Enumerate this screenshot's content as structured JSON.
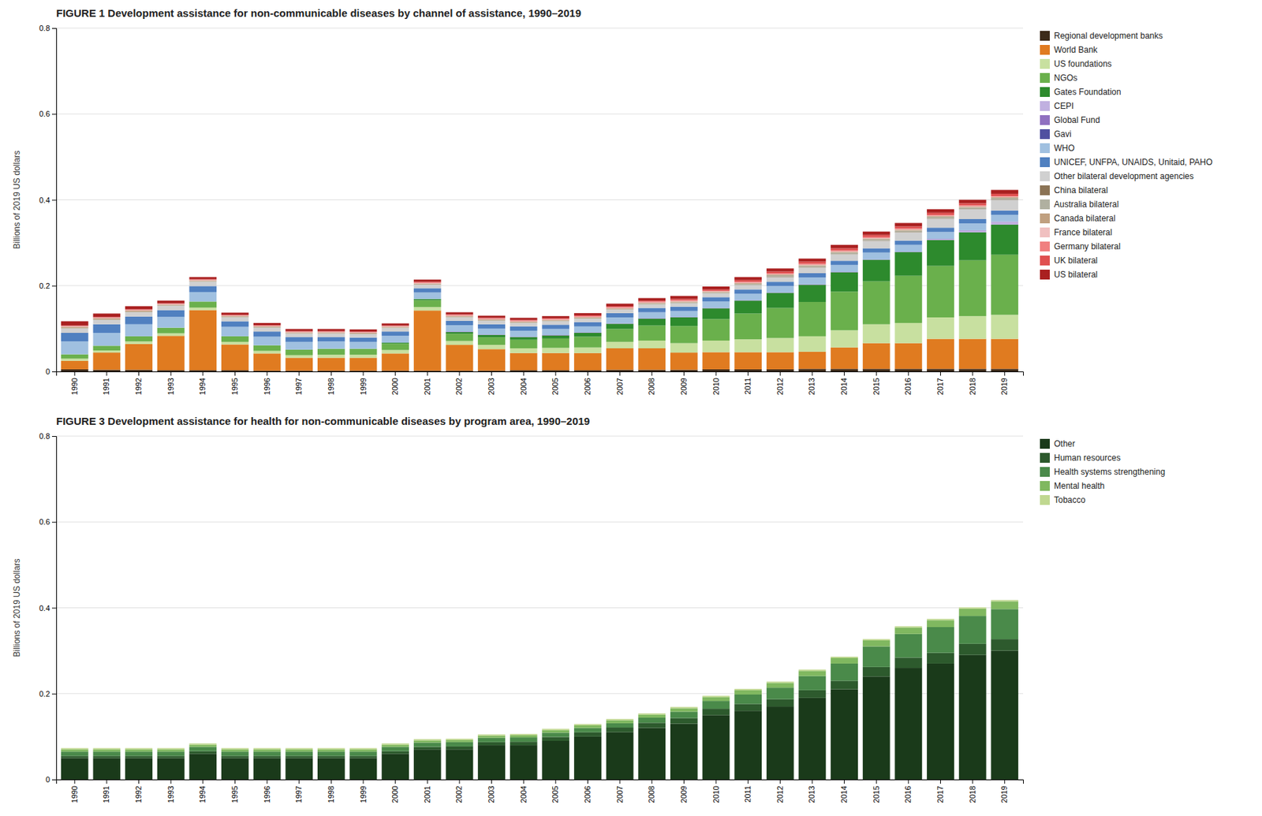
{
  "chart_data": [
    {
      "type": "bar",
      "stacked": true,
      "grid": true,
      "legend": "right",
      "title": "FIGURE 1   Development assistance for non-communicable diseases by channel of assistance, 1990–2019",
      "ylabel": "Billions of 2019 US dollars",
      "categories": [
        1990,
        1991,
        1992,
        1993,
        1994,
        1995,
        1996,
        1997,
        1998,
        1999,
        2000,
        2001,
        2002,
        2003,
        2004,
        2005,
        2006,
        2007,
        2008,
        2009,
        2010,
        2011,
        2012,
        2013,
        2014,
        2015,
        2016,
        2017,
        2018,
        2019
      ],
      "ylim": [
        0,
        0.8
      ],
      "yticks": [
        0,
        0.2,
        0.4,
        0.6,
        0.8
      ],
      "series": [
        {
          "name": "Regional development banks",
          "color": "#3d2b1a",
          "values": [
            0.005,
            0.004,
            0.004,
            0.003,
            0.003,
            0.003,
            0.002,
            0.002,
            0.002,
            0.002,
            0.002,
            0.002,
            0.002,
            0.002,
            0.003,
            0.003,
            0.003,
            0.004,
            0.004,
            0.004,
            0.005,
            0.005,
            0.005,
            0.006,
            0.006,
            0.006,
            0.006,
            0.006,
            0.006,
            0.006
          ]
        },
        {
          "name": "World Bank",
          "color": "#e07b20",
          "values": [
            0.02,
            0.04,
            0.06,
            0.08,
            0.14,
            0.06,
            0.04,
            0.03,
            0.03,
            0.03,
            0.04,
            0.14,
            0.06,
            0.05,
            0.04,
            0.04,
            0.04,
            0.05,
            0.05,
            0.04,
            0.04,
            0.04,
            0.04,
            0.04,
            0.05,
            0.06,
            0.06,
            0.07,
            0.07,
            0.07
          ]
        },
        {
          "name": "US foundations",
          "color": "#c8e0a0",
          "values": [
            0.005,
            0.005,
            0.006,
            0.006,
            0.006,
            0.006,
            0.006,
            0.006,
            0.007,
            0.007,
            0.008,
            0.008,
            0.009,
            0.01,
            0.011,
            0.012,
            0.013,
            0.015,
            0.018,
            0.022,
            0.027,
            0.03,
            0.033,
            0.036,
            0.04,
            0.044,
            0.047,
            0.05,
            0.053,
            0.056
          ]
        },
        {
          "name": "NGOs",
          "color": "#6ab04c",
          "values": [
            0.01,
            0.011,
            0.012,
            0.013,
            0.014,
            0.013,
            0.013,
            0.013,
            0.014,
            0.014,
            0.015,
            0.016,
            0.017,
            0.018,
            0.02,
            0.022,
            0.025,
            0.03,
            0.035,
            0.04,
            0.05,
            0.06,
            0.07,
            0.08,
            0.09,
            0.1,
            0.11,
            0.12,
            0.13,
            0.14
          ]
        },
        {
          "name": "Gates Foundation",
          "color": "#2d8a2d",
          "values": [
            0,
            0,
            0,
            0,
            0,
            0,
            0,
            0,
            0,
            0,
            0.002,
            0.003,
            0.004,
            0.005,
            0.006,
            0.007,
            0.009,
            0.012,
            0.016,
            0.02,
            0.025,
            0.03,
            0.035,
            0.04,
            0.045,
            0.05,
            0.055,
            0.06,
            0.065,
            0.07
          ]
        },
        {
          "name": "CEPI",
          "color": "#c0b0e0",
          "values": [
            0,
            0,
            0,
            0,
            0,
            0,
            0,
            0,
            0,
            0,
            0,
            0,
            0,
            0,
            0,
            0,
            0,
            0,
            0,
            0,
            0,
            0,
            0,
            0,
            0,
            0,
            0,
            0.002,
            0.004,
            0.006
          ]
        },
        {
          "name": "Global Fund",
          "color": "#9070c0",
          "values": [
            0,
            0,
            0,
            0,
            0,
            0,
            0,
            0,
            0,
            0,
            0,
            0,
            0.001,
            0.001,
            0.001,
            0.001,
            0.001,
            0.001,
            0.001,
            0.001,
            0.001,
            0.001,
            0.001,
            0.001,
            0.001,
            0.001,
            0.001,
            0.001,
            0.001,
            0.001
          ]
        },
        {
          "name": "Gavi",
          "color": "#5050a0",
          "values": [
            0,
            0,
            0,
            0,
            0,
            0,
            0,
            0,
            0,
            0,
            0,
            0,
            0,
            0,
            0,
            0,
            0,
            0,
            0,
            0,
            0,
            0,
            0,
            0,
            0,
            0,
            0,
            0,
            0,
            0
          ]
        },
        {
          "name": "WHO",
          "color": "#a0c0e0",
          "values": [
            0.03,
            0.03,
            0.028,
            0.025,
            0.022,
            0.022,
            0.02,
            0.018,
            0.017,
            0.016,
            0.016,
            0.015,
            0.015,
            0.014,
            0.014,
            0.014,
            0.014,
            0.014,
            0.014,
            0.014,
            0.015,
            0.015,
            0.015,
            0.016,
            0.016,
            0.016,
            0.016,
            0.016,
            0.016,
            0.016
          ]
        },
        {
          "name": "UNICEF, UNFPA, UNAIDS, Unitaid, PAHO",
          "color": "#5080c0",
          "values": [
            0.02,
            0.02,
            0.018,
            0.016,
            0.014,
            0.013,
            0.012,
            0.011,
            0.01,
            0.01,
            0.01,
            0.01,
            0.01,
            0.01,
            0.01,
            0.01,
            0.01,
            0.01,
            0.01,
            0.01,
            0.01,
            0.01,
            0.01,
            0.01,
            0.01,
            0.01,
            0.01,
            0.01,
            0.01,
            0.01
          ]
        },
        {
          "name": "Other bilateral development agencies",
          "color": "#d0d0d0",
          "values": [
            0.01,
            0.01,
            0.01,
            0.01,
            0.01,
            0.009,
            0.009,
            0.008,
            0.008,
            0.008,
            0.008,
            0.008,
            0.008,
            0.008,
            0.008,
            0.008,
            0.008,
            0.008,
            0.008,
            0.008,
            0.009,
            0.01,
            0.011,
            0.013,
            0.015,
            0.017,
            0.019,
            0.021,
            0.023,
            0.025
          ]
        },
        {
          "name": "China bilateral",
          "color": "#8b7355",
          "values": [
            0,
            0,
            0,
            0,
            0,
            0,
            0,
            0,
            0,
            0,
            0,
            0,
            0,
            0,
            0,
            0,
            0,
            0,
            0,
            0,
            0,
            0,
            0.001,
            0.001,
            0.001,
            0.001,
            0.001,
            0.001,
            0.001,
            0.001
          ]
        },
        {
          "name": "Australia bilateral",
          "color": "#b0b0a0",
          "values": [
            0.001,
            0.001,
            0.001,
            0.001,
            0.001,
            0.001,
            0.001,
            0.001,
            0.001,
            0.001,
            0.001,
            0.001,
            0.001,
            0.001,
            0.001,
            0.001,
            0.001,
            0.001,
            0.002,
            0.002,
            0.002,
            0.003,
            0.003,
            0.003,
            0.003,
            0.003,
            0.003,
            0.003,
            0.003,
            0.003
          ]
        },
        {
          "name": "Canada bilateral",
          "color": "#c0a080",
          "values": [
            0.003,
            0.003,
            0.003,
            0.002,
            0.002,
            0.002,
            0.002,
            0.002,
            0.002,
            0.002,
            0.002,
            0.002,
            0.002,
            0.002,
            0.002,
            0.002,
            0.002,
            0.002,
            0.002,
            0.002,
            0.002,
            0.002,
            0.002,
            0.002,
            0.002,
            0.002,
            0.002,
            0.002,
            0.002,
            0.002
          ]
        },
        {
          "name": "France bilateral",
          "color": "#f0c0c0",
          "values": [
            0.001,
            0.001,
            0.001,
            0.001,
            0.001,
            0.001,
            0.001,
            0.001,
            0.001,
            0.001,
            0.001,
            0.001,
            0.001,
            0.001,
            0.001,
            0.001,
            0.001,
            0.001,
            0.001,
            0.001,
            0.001,
            0.001,
            0.001,
            0.001,
            0.001,
            0.001,
            0.001,
            0.001,
            0.001,
            0.001
          ]
        },
        {
          "name": "Germany bilateral",
          "color": "#f08080",
          "values": [
            0.001,
            0.001,
            0.001,
            0.001,
            0.001,
            0.001,
            0.001,
            0.001,
            0.001,
            0.001,
            0.001,
            0.002,
            0.002,
            0.002,
            0.002,
            0.002,
            0.002,
            0.002,
            0.002,
            0.002,
            0.001,
            0.002,
            0.002,
            0.002,
            0.002,
            0.002,
            0.002,
            0.002,
            0.002,
            0.002
          ]
        },
        {
          "name": "UK bilateral",
          "color": "#e05050",
          "values": [
            0.001,
            0.001,
            0.001,
            0.001,
            0.001,
            0.001,
            0.001,
            0.001,
            0.001,
            0.001,
            0.001,
            0.001,
            0.001,
            0.001,
            0.001,
            0.001,
            0.002,
            0.002,
            0.002,
            0.003,
            0.003,
            0.004,
            0.004,
            0.005,
            0.005,
            0.005,
            0.005,
            0.005,
            0.005,
            0.005
          ]
        },
        {
          "name": "US bilateral",
          "color": "#aa2020",
          "values": [
            0.01,
            0.008,
            0.007,
            0.006,
            0.005,
            0.005,
            0.005,
            0.005,
            0.005,
            0.005,
            0.005,
            0.005,
            0.005,
            0.005,
            0.005,
            0.005,
            0.005,
            0.006,
            0.006,
            0.007,
            0.007,
            0.007,
            0.007,
            0.007,
            0.008,
            0.008,
            0.008,
            0.008,
            0.008,
            0.009
          ]
        }
      ]
    },
    {
      "type": "bar",
      "stacked": true,
      "grid": true,
      "legend": "right",
      "title": "FIGURE 3   Development assistance for health for non-communicable diseases by program area, 1990–2019",
      "ylabel": "Billions of 2019 US dollars",
      "categories": [
        1990,
        1991,
        1992,
        1993,
        1994,
        1995,
        1996,
        1997,
        1998,
        1999,
        2000,
        2001,
        2002,
        2003,
        2004,
        2005,
        2006,
        2007,
        2008,
        2009,
        2010,
        2011,
        2012,
        2013,
        2014,
        2015,
        2016,
        2017,
        2018,
        2019
      ],
      "ylim": [
        0,
        0.8
      ],
      "yticks": [
        0,
        0.2,
        0.4,
        0.6,
        0.8
      ],
      "series": [
        {
          "name": "Other",
          "color": "#1a3a1a",
          "values": [
            0.05,
            0.05,
            0.05,
            0.05,
            0.06,
            0.05,
            0.05,
            0.05,
            0.05,
            0.05,
            0.06,
            0.07,
            0.07,
            0.08,
            0.08,
            0.09,
            0.1,
            0.11,
            0.12,
            0.13,
            0.15,
            0.16,
            0.17,
            0.19,
            0.21,
            0.24,
            0.26,
            0.27,
            0.29,
            0.3
          ]
        },
        {
          "name": "Human resources",
          "color": "#2d5a2d",
          "values": [
            0.005,
            0.005,
            0.005,
            0.005,
            0.006,
            0.005,
            0.005,
            0.005,
            0.005,
            0.005,
            0.006,
            0.006,
            0.007,
            0.007,
            0.008,
            0.009,
            0.01,
            0.011,
            0.012,
            0.013,
            0.015,
            0.016,
            0.017,
            0.018,
            0.02,
            0.022,
            0.024,
            0.025,
            0.026,
            0.027
          ]
        },
        {
          "name": "Health systems strengthening",
          "color": "#4a8a4a",
          "values": [
            0.01,
            0.01,
            0.01,
            0.01,
            0.01,
            0.01,
            0.01,
            0.01,
            0.01,
            0.01,
            0.01,
            0.01,
            0.01,
            0.01,
            0.01,
            0.01,
            0.01,
            0.01,
            0.012,
            0.015,
            0.018,
            0.022,
            0.027,
            0.033,
            0.04,
            0.048,
            0.055,
            0.06,
            0.065,
            0.07
          ]
        },
        {
          "name": "Mental health",
          "color": "#80b860",
          "values": [
            0.005,
            0.005,
            0.005,
            0.005,
            0.005,
            0.005,
            0.005,
            0.005,
            0.005,
            0.005,
            0.005,
            0.005,
            0.005,
            0.005,
            0.005,
            0.006,
            0.006,
            0.007,
            0.007,
            0.008,
            0.009,
            0.01,
            0.011,
            0.012,
            0.013,
            0.014,
            0.015,
            0.016,
            0.017,
            0.018
          ]
        },
        {
          "name": "Tobacco",
          "color": "#c0d890",
          "values": [
            0.003,
            0.003,
            0.003,
            0.003,
            0.003,
            0.003,
            0.003,
            0.003,
            0.003,
            0.003,
            0.003,
            0.003,
            0.003,
            0.003,
            0.003,
            0.003,
            0.003,
            0.003,
            0.003,
            0.003,
            0.003,
            0.003,
            0.003,
            0.003,
            0.003,
            0.003,
            0.003,
            0.003,
            0.003,
            0.003
          ]
        }
      ]
    }
  ]
}
